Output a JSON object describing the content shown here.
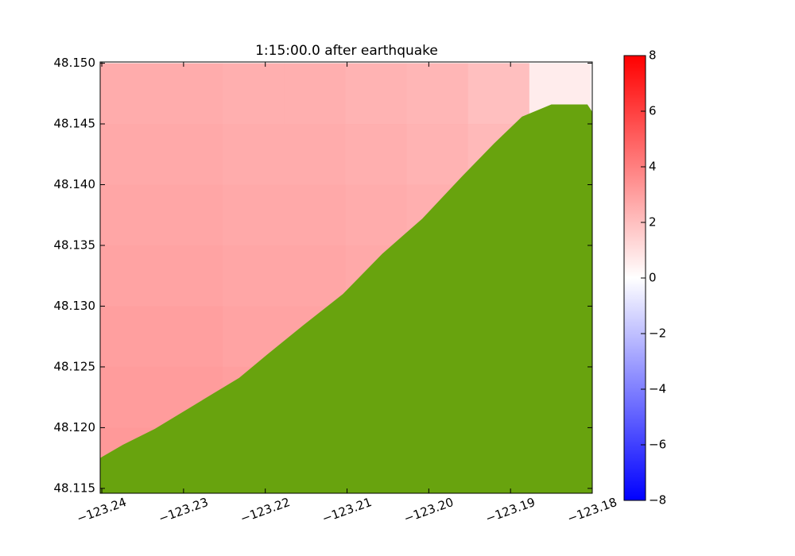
{
  "chart_data": {
    "type": "heatmap",
    "title": "1:15:00.0 after earthquake",
    "xlim": [
      -123.2402,
      -123.18
    ],
    "ylim": [
      48.1146,
      48.1501
    ],
    "xticks": [
      {
        "value": -123.24,
        "label": "−123.24"
      },
      {
        "value": -123.23,
        "label": "−123.23"
      },
      {
        "value": -123.22,
        "label": "−123.22"
      },
      {
        "value": -123.21,
        "label": "−123.21"
      },
      {
        "value": -123.2,
        "label": "−123.20"
      },
      {
        "value": -123.19,
        "label": "−123.19"
      },
      {
        "value": -123.18,
        "label": "−123.18"
      }
    ],
    "yticks": [
      48.115,
      {
        "value": 48.12,
        "label": "48.120"
      },
      48.125,
      {
        "value": 48.13,
        "label": "48.130"
      },
      48.135,
      {
        "value": 48.14,
        "label": "48.140"
      },
      48.145,
      {
        "value": 48.15,
        "label": "48.150"
      }
    ],
    "surface": {
      "x": [
        -123.23645,
        -123.22895,
        -123.22145,
        -123.21395,
        -123.20645,
        -123.19895,
        -123.19145,
        -123.18395
      ],
      "y": [
        48.1475,
        48.1425,
        48.1375,
        48.1325,
        48.1275,
        48.1225,
        48.1175
      ],
      "values": [
        [
          2.6,
          2.6,
          2.5,
          2.5,
          2.4,
          2.3,
          2.0,
          0.6
        ],
        [
          2.7,
          2.7,
          2.6,
          2.6,
          2.5,
          2.4,
          2.2,
          1.0
        ],
        [
          2.8,
          2.8,
          2.7,
          2.7,
          2.6,
          2.5,
          2.3,
          2.0
        ],
        [
          2.9,
          2.9,
          2.8,
          2.8,
          2.7,
          2.6,
          2.4,
          2.1
        ],
        [
          3.0,
          3.0,
          2.9,
          2.9,
          2.8,
          2.7,
          2.5,
          2.2
        ],
        [
          3.1,
          3.1,
          3.0,
          3.0,
          2.9,
          2.8,
          2.6,
          2.3
        ],
        [
          3.2,
          3.2,
          3.1,
          3.1,
          3.0,
          2.9,
          2.7,
          2.4
        ]
      ]
    },
    "coastline": {
      "x": [
        -123.2402,
        -123.2374,
        -123.2335,
        -123.2286,
        -123.2232,
        -123.2198,
        -123.2154,
        -123.2105,
        -123.2057,
        -123.2008,
        -123.1959,
        -123.192,
        -123.1886,
        -123.185,
        -123.1806,
        -123.18
      ],
      "y": [
        48.1175,
        48.1186,
        48.1199,
        48.1219,
        48.1241,
        48.126,
        48.1284,
        48.131,
        48.1343,
        48.1372,
        48.1407,
        48.1434,
        48.1456,
        48.1466,
        48.1466,
        48.146
      ]
    },
    "land_color": "#68a30e",
    "colorbar": {
      "clim": [
        -8,
        8
      ],
      "ticks": [
        {
          "value": -8,
          "label": "−8"
        },
        {
          "value": -6,
          "label": "−6"
        },
        {
          "value": -4,
          "label": "−4"
        },
        {
          "value": -2,
          "label": "−2"
        },
        0,
        2,
        4,
        6,
        8
      ]
    }
  }
}
